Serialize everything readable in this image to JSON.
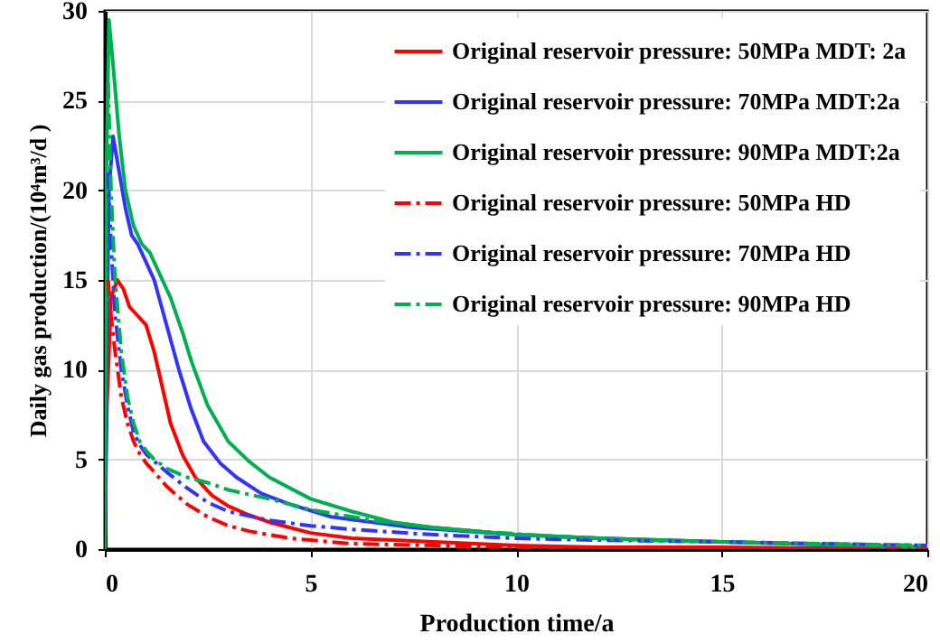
{
  "chart_data": {
    "type": "line",
    "xlabel": "Production time/a",
    "ylabel": "Daily gas production/(10⁴m³/d )",
    "xlim": [
      0,
      20
    ],
    "ylim": [
      0,
      30
    ],
    "xticks": [
      0,
      5,
      10,
      15,
      20
    ],
    "yticks": [
      0,
      5,
      10,
      15,
      20,
      25,
      30
    ],
    "grid": true,
    "legend": "top right",
    "marker": "none",
    "series": [
      {
        "name": "Original reservoir pressure: 50MPa  MDT: 2a",
        "color": "#ff0000",
        "line_style": "solid",
        "x": [
          0,
          0.05,
          0.15,
          0.3,
          0.45,
          0.6,
          0.8,
          1.0,
          1.2,
          1.4,
          1.6,
          1.9,
          2.2,
          2.6,
          3,
          3.5,
          4,
          5,
          6,
          8,
          10,
          12,
          15,
          20
        ],
        "values": [
          0,
          8,
          14,
          15,
          14.5,
          13.5,
          13,
          12.5,
          11,
          9,
          7,
          5.2,
          4,
          3,
          2.4,
          1.9,
          1.5,
          0.9,
          0.6,
          0.4,
          0.2,
          0.1,
          0.1,
          0
        ]
      },
      {
        "name": "Original reservoir pressure: 70MPa  MDT:2a",
        "color": "#3333ff",
        "line_style": "solid",
        "x": [
          0,
          0.05,
          0.1,
          0.2,
          0.35,
          0.5,
          0.65,
          0.8,
          1.0,
          1.2,
          1.5,
          1.8,
          2.1,
          2.4,
          2.8,
          3.2,
          3.8,
          4.5,
          5.5,
          6.5,
          7.5,
          10,
          12,
          15,
          20
        ],
        "values": [
          0,
          12,
          20,
          23,
          21,
          19,
          17.5,
          17,
          16,
          15,
          12.5,
          10,
          7.8,
          6,
          4.8,
          4,
          3.1,
          2.5,
          1.8,
          1.5,
          1.2,
          0.8,
          0.6,
          0.4,
          0.1
        ]
      },
      {
        "name": "Original reservoir pressure: 90MPa  MDT:2a",
        "color": "#00b050",
        "line_style": "solid",
        "x": [
          0,
          0.03,
          0.1,
          0.2,
          0.35,
          0.5,
          0.7,
          0.9,
          1.1,
          1.3,
          1.6,
          1.9,
          2.1,
          2.5,
          3,
          3.5,
          4,
          5,
          6,
          7,
          8,
          10,
          12,
          15,
          20
        ],
        "values": [
          0,
          20,
          29.5,
          27,
          23,
          20,
          18,
          17,
          16.5,
          15.5,
          14,
          12,
          10.5,
          8,
          6,
          4.9,
          4,
          2.8,
          2.1,
          1.5,
          1.2,
          0.8,
          0.6,
          0.4,
          0.1
        ]
      },
      {
        "name": "Original reservoir pressure: 50MPa  HD",
        "color": "#ff0000",
        "line_style": "dashed",
        "x": [
          0.08,
          0.15,
          0.25,
          0.4,
          0.55,
          0.7,
          0.85,
          1.0,
          1.2,
          1.5,
          2,
          2.5,
          3,
          3.5,
          4,
          4.5,
          5,
          6,
          8,
          10,
          15,
          20
        ],
        "values": [
          15,
          13,
          11,
          8.5,
          7,
          6,
          5.3,
          4.8,
          4.3,
          3.5,
          2.5,
          1.8,
          1.3,
          1,
          0.8,
          0.6,
          0.5,
          0.3,
          0.2,
          0.1,
          0,
          0
        ]
      },
      {
        "name": "Original reservoir pressure: 70MPa  HD",
        "color": "#3333ff",
        "line_style": "dashed",
        "x": [
          0.08,
          0.15,
          0.25,
          0.4,
          0.55,
          0.7,
          0.85,
          1.0,
          1.2,
          1.5,
          2,
          2.5,
          3,
          4,
          5,
          6,
          8,
          10,
          12,
          15,
          20
        ],
        "values": [
          21,
          17,
          13,
          10,
          8,
          6.5,
          5.8,
          5.3,
          4.9,
          4.3,
          3.4,
          2.6,
          2.1,
          1.6,
          1.3,
          1.1,
          0.8,
          0.6,
          0.5,
          0.4,
          0.2
        ]
      },
      {
        "name": "Original reservoir pressure: 90MPa  HD",
        "color": "#00b050",
        "line_style": "dashed",
        "x": [
          0.08,
          0.15,
          0.25,
          0.4,
          0.55,
          0.7,
          0.85,
          1.0,
          1.2,
          1.5,
          2,
          2.5,
          3,
          4,
          4.5,
          5,
          6.5,
          8,
          9,
          11,
          13,
          15,
          20
        ],
        "values": [
          26,
          20,
          15,
          11,
          8.5,
          7,
          6,
          5.5,
          5,
          4.5,
          4,
          3.7,
          3.3,
          2.8,
          2.5,
          2.2,
          1.6,
          1.2,
          1,
          0.7,
          0.5,
          0.4,
          0.2
        ]
      }
    ]
  }
}
